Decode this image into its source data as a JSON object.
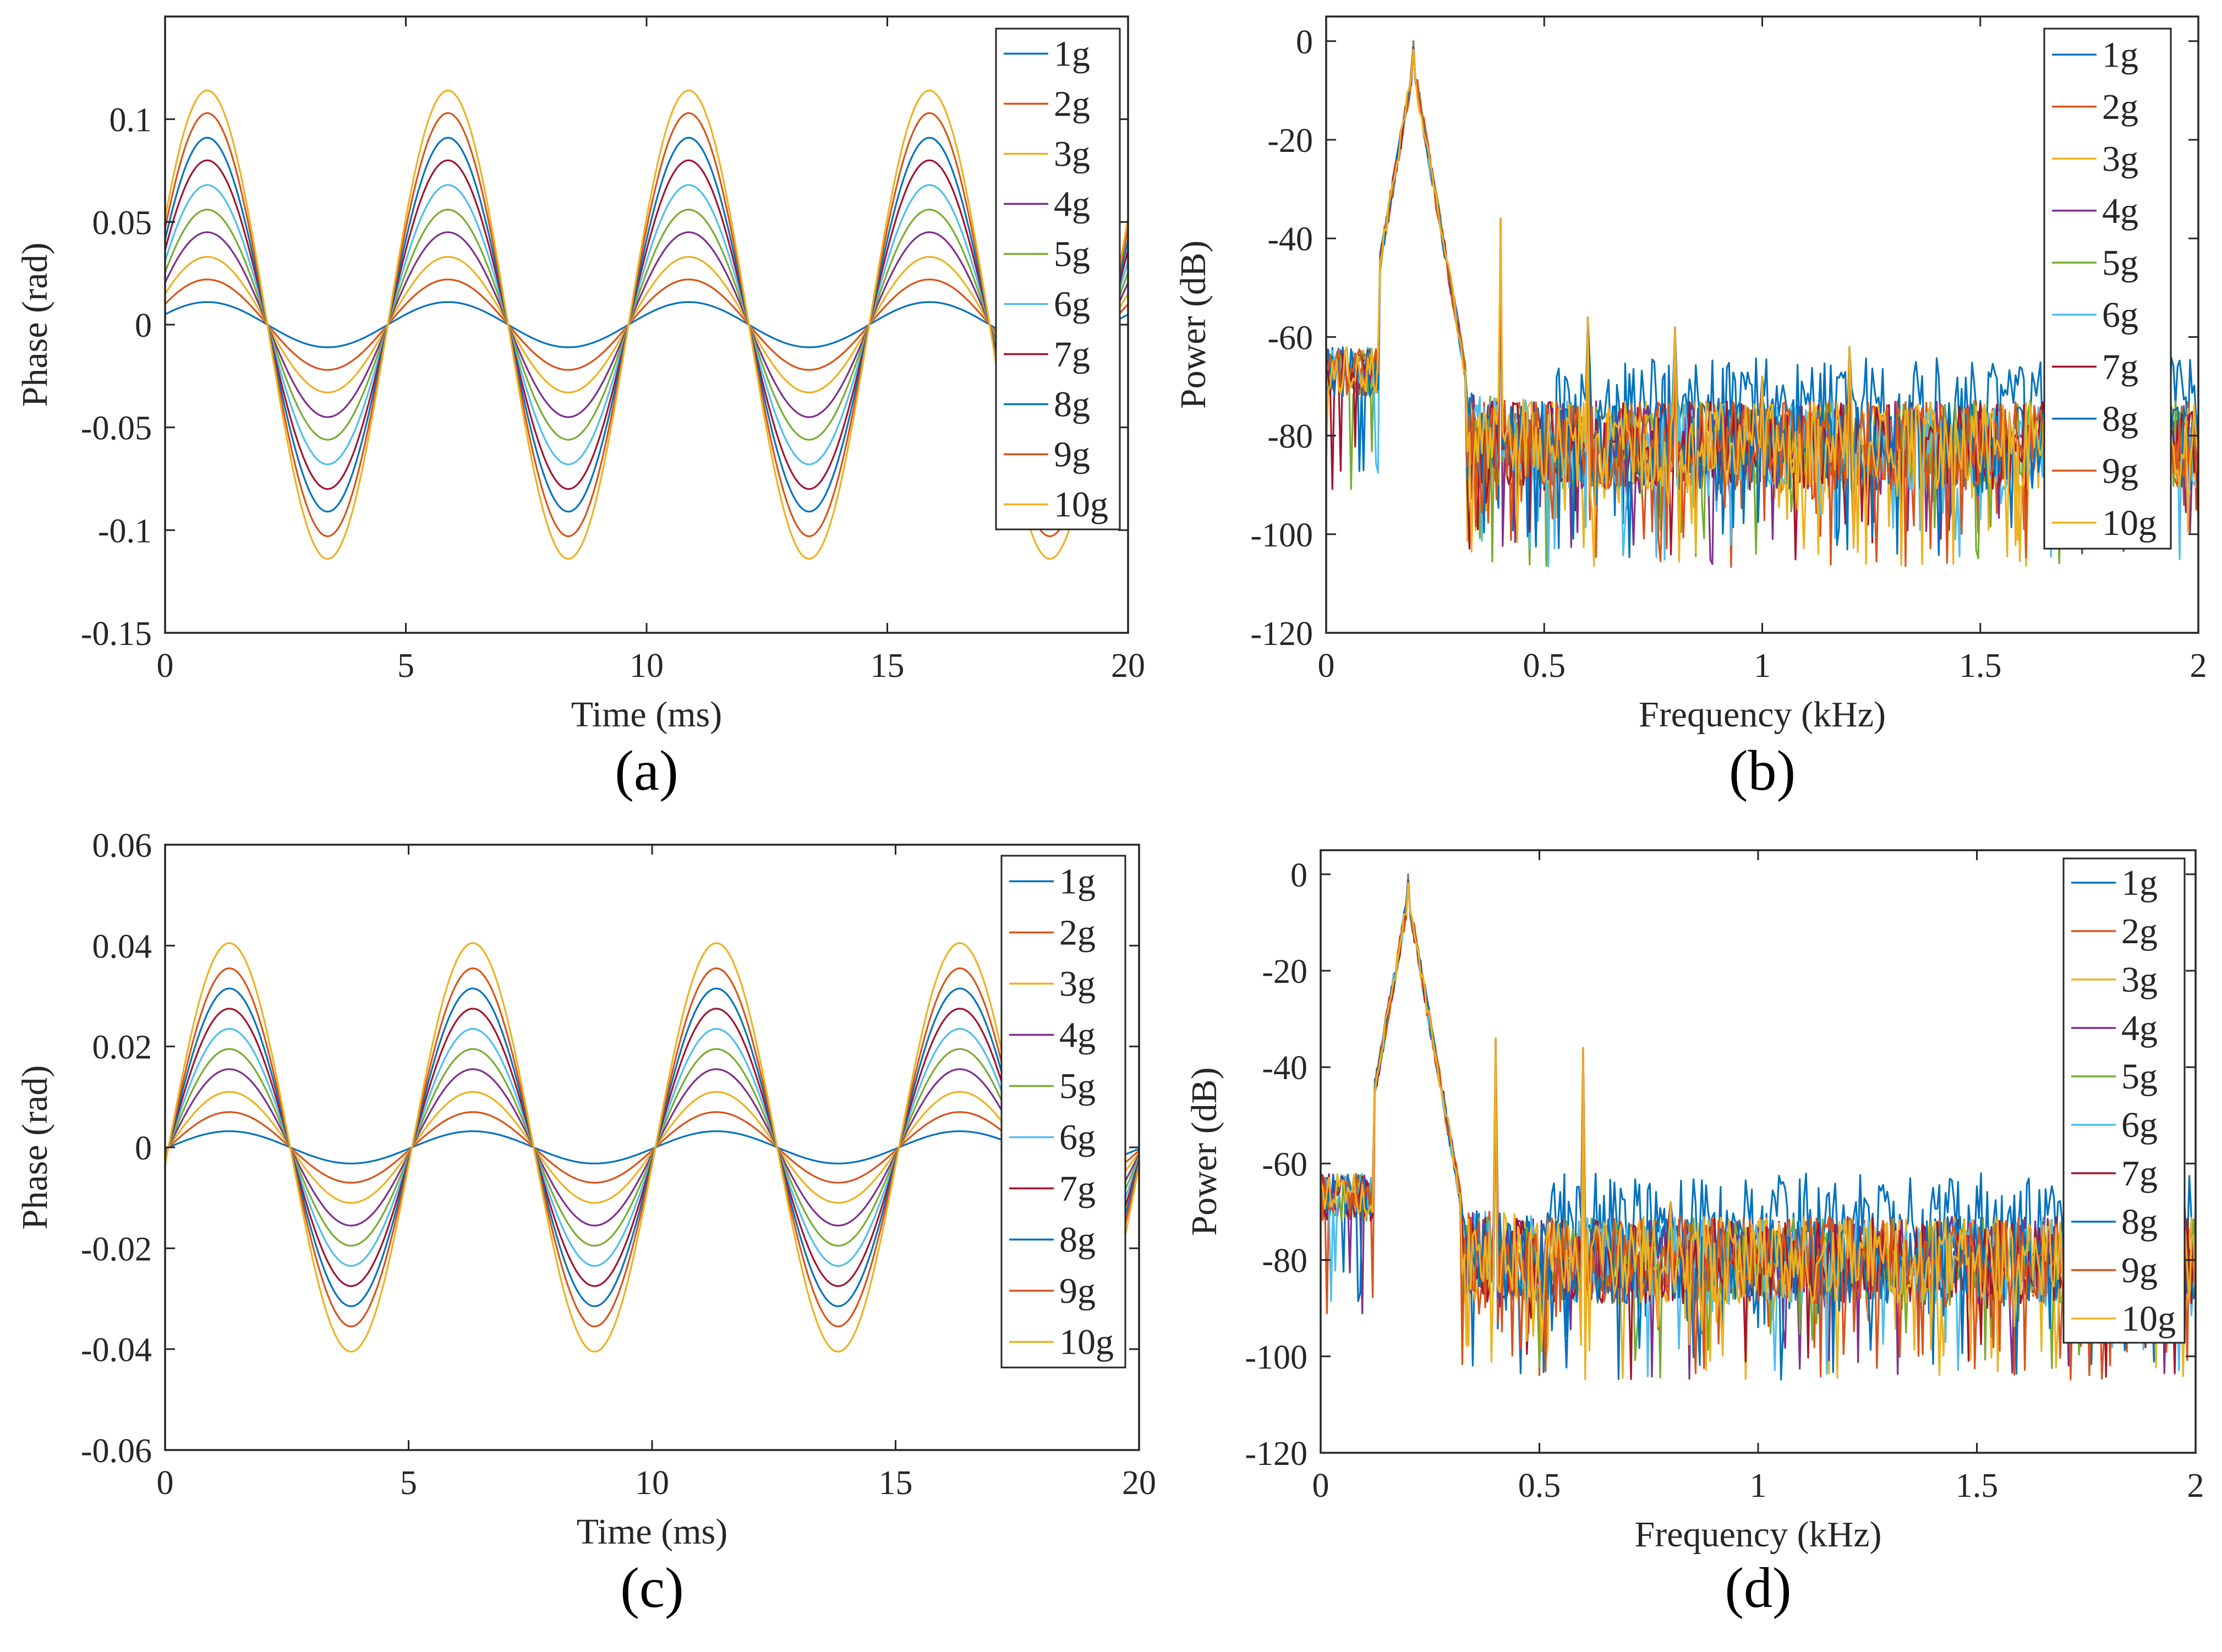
{
  "figure": {
    "colors": [
      "#0072BD",
      "#D95319",
      "#EDB120",
      "#7E2F8E",
      "#77AC30",
      "#4DBEEE",
      "#A2142F",
      "#0072BD",
      "#D95319",
      "#EDB120"
    ]
  },
  "chart_data": [
    {
      "id": "a",
      "type": "line",
      "panel_label": "(a)",
      "xlabel": "Time (ms)",
      "ylabel": "Phase (rad)",
      "xlim": [
        0,
        20
      ],
      "ylim": [
        -0.15,
        0.15
      ],
      "xticks": [
        "0",
        "5",
        "10",
        "15",
        "20"
      ],
      "xtick_values": [
        0,
        5,
        10,
        15,
        20
      ],
      "yticks": [
        "-0.15",
        "-0.1",
        "-0.05",
        "0",
        "0.05",
        "0.1"
      ],
      "ytick_values": [
        -0.15,
        -0.1,
        -0.05,
        0,
        0.05,
        0.1
      ],
      "legend_position": "top-right",
      "signal": {
        "frequency_khz": 0.2,
        "phase_deg": 27
      },
      "series": [
        {
          "name": "1g",
          "amplitude": 0.011
        },
        {
          "name": "2g",
          "amplitude": 0.022
        },
        {
          "name": "3g",
          "amplitude": 0.033
        },
        {
          "name": "4g",
          "amplitude": 0.045
        },
        {
          "name": "5g",
          "amplitude": 0.056
        },
        {
          "name": "6g",
          "amplitude": 0.068
        },
        {
          "name": "7g",
          "amplitude": 0.08
        },
        {
          "name": "8g",
          "amplitude": 0.091
        },
        {
          "name": "9g",
          "amplitude": 0.103
        },
        {
          "name": "10g",
          "amplitude": 0.114
        }
      ]
    },
    {
      "id": "b",
      "type": "line",
      "panel_label": "(b)",
      "xlabel": "Frequency (kHz)",
      "ylabel": "Power (dB)",
      "xlim": [
        0,
        2
      ],
      "ylim": [
        -120,
        5
      ],
      "xticks": [
        "0",
        "0.5",
        "1",
        "1.5",
        "2"
      ],
      "xtick_values": [
        0,
        0.5,
        1,
        1.5,
        2
      ],
      "yticks": [
        "-120",
        "-100",
        "-80",
        "-60",
        "-40",
        "-20",
        "0"
      ],
      "ytick_values": [
        -120,
        -100,
        -80,
        -60,
        -40,
        -20,
        0
      ],
      "legend_position": "top-right",
      "fundamental_khz": 0.2,
      "peak_db": 0,
      "harmonics": [
        {
          "freq_khz": 0.4,
          "db": -36
        },
        {
          "freq_khz": 0.6,
          "db": -56
        },
        {
          "freq_khz": 0.8,
          "db": -58
        },
        {
          "freq_khz": 1.0,
          "db": -68
        },
        {
          "freq_khz": 1.2,
          "db": -62
        }
      ],
      "noise_floor_db": -82,
      "series": [
        {
          "name": "1g"
        },
        {
          "name": "2g"
        },
        {
          "name": "3g"
        },
        {
          "name": "4g"
        },
        {
          "name": "5g"
        },
        {
          "name": "6g"
        },
        {
          "name": "7g"
        },
        {
          "name": "8g"
        },
        {
          "name": "9g"
        },
        {
          "name": "10g"
        }
      ]
    },
    {
      "id": "c",
      "type": "line",
      "panel_label": "(c)",
      "xlabel": "Time (ms)",
      "ylabel": "Phase (rad)",
      "xlim": [
        0,
        20
      ],
      "ylim": [
        -0.06,
        0.06
      ],
      "xticks": [
        "0",
        "5",
        "10",
        "15",
        "20"
      ],
      "xtick_values": [
        0,
        5,
        10,
        15,
        20
      ],
      "yticks": [
        "-0.06",
        "-0.04",
        "-0.02",
        "0",
        "0.02",
        "0.04",
        "0.06"
      ],
      "ytick_values": [
        -0.06,
        -0.04,
        -0.02,
        0,
        0.02,
        0.04,
        0.06
      ],
      "legend_position": "top-right",
      "signal": {
        "frequency_khz": 0.2,
        "phase_deg": -5
      },
      "series": [
        {
          "name": "1g",
          "amplitude": 0.0032
        },
        {
          "name": "2g",
          "amplitude": 0.007
        },
        {
          "name": "3g",
          "amplitude": 0.011
        },
        {
          "name": "4g",
          "amplitude": 0.0155
        },
        {
          "name": "5g",
          "amplitude": 0.0195
        },
        {
          "name": "6g",
          "amplitude": 0.0235
        },
        {
          "name": "7g",
          "amplitude": 0.0275
        },
        {
          "name": "8g",
          "amplitude": 0.0315
        },
        {
          "name": "9g",
          "amplitude": 0.0355
        },
        {
          "name": "10g",
          "amplitude": 0.0405
        }
      ]
    },
    {
      "id": "d",
      "type": "line",
      "panel_label": "(d)",
      "xlabel": "Frequency (kHz)",
      "ylabel": "Power (dB)",
      "xlim": [
        0,
        2
      ],
      "ylim": [
        -120,
        5
      ],
      "xticks": [
        "0",
        "0.5",
        "1",
        "1.5",
        "2"
      ],
      "xtick_values": [
        0,
        0.5,
        1,
        1.5,
        2
      ],
      "yticks": [
        "-120",
        "-100",
        "-80",
        "-60",
        "-40",
        "-20",
        "0"
      ],
      "ytick_values": [
        -120,
        -100,
        -80,
        -60,
        -40,
        -20,
        0
      ],
      "legend_position": "top-right",
      "fundamental_khz": 0.2,
      "peak_db": 0,
      "harmonics": [
        {
          "freq_khz": 0.15,
          "db": -30
        },
        {
          "freq_khz": 0.4,
          "db": -34
        },
        {
          "freq_khz": 0.6,
          "db": -36
        },
        {
          "freq_khz": 0.8,
          "db": -68
        }
      ],
      "noise_floor_db": -80,
      "series": [
        {
          "name": "1g"
        },
        {
          "name": "2g"
        },
        {
          "name": "3g"
        },
        {
          "name": "4g"
        },
        {
          "name": "5g"
        },
        {
          "name": "6g"
        },
        {
          "name": "7g"
        },
        {
          "name": "8g"
        },
        {
          "name": "9g"
        },
        {
          "name": "10g"
        }
      ]
    }
  ]
}
